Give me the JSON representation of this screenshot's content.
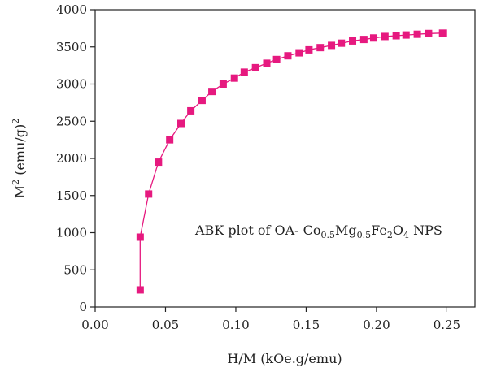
{
  "chart_data": {
    "type": "line",
    "xlabel": "H/M (kOe.g/emu)",
    "ylabel": {
      "base": "M",
      "sup": "2",
      "rest": " (emu/g)",
      "sup2": "2"
    },
    "xlim": [
      0.0,
      0.27
    ],
    "ylim": [
      0,
      4000
    ],
    "xticks": [
      "0.00",
      "0.05",
      "0.10",
      "0.15",
      "0.20",
      "0.25"
    ],
    "yticks": [
      "0",
      "500",
      "1000",
      "1500",
      "2000",
      "2500",
      "3000",
      "3500",
      "4000"
    ],
    "grid": false,
    "annotation": {
      "parts": [
        {
          "t": "ABK plot of OA- Co"
        },
        {
          "t": "0.5",
          "sub": true
        },
        {
          "t": "Mg"
        },
        {
          "t": "0.5",
          "sub": true
        },
        {
          "t": "Fe"
        },
        {
          "t": "2",
          "sub": true
        },
        {
          "t": "O"
        },
        {
          "t": "4",
          "sub": true
        },
        {
          "t": " NPS"
        }
      ]
    },
    "series": [
      {
        "color": "#e6197f",
        "marker": "square",
        "x": [
          0.032,
          0.032,
          0.038,
          0.045,
          0.053,
          0.061,
          0.068,
          0.076,
          0.083,
          0.091,
          0.099,
          0.106,
          0.114,
          0.122,
          0.129,
          0.137,
          0.145,
          0.152,
          0.16,
          0.168,
          0.175,
          0.183,
          0.191,
          0.198,
          0.206,
          0.214,
          0.221,
          0.229,
          0.237,
          0.247
        ],
        "y": [
          230,
          940,
          1520,
          1950,
          2250,
          2470,
          2640,
          2780,
          2900,
          3000,
          3080,
          3160,
          3220,
          3280,
          3330,
          3380,
          3420,
          3460,
          3490,
          3520,
          3550,
          3580,
          3600,
          3620,
          3640,
          3650,
          3660,
          3670,
          3680,
          3685
        ]
      }
    ]
  }
}
